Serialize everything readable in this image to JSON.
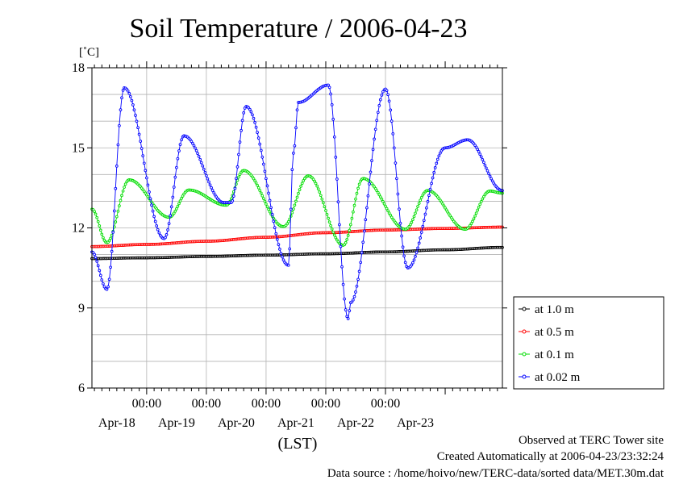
{
  "chart_data": {
    "type": "line",
    "title": "Soil Temperature / 2006-04-23",
    "ylabel": "[˚C]",
    "xlabel": "(LST)",
    "ylim": [
      6,
      18
    ],
    "yticks": [
      6,
      9,
      12,
      15,
      18
    ],
    "xlim": [
      "2006-04-17T02:00",
      "2006-04-23T23:00"
    ],
    "x_major_ticks": [
      "2006-04-18T00:00",
      "2006-04-19T00:00",
      "2006-04-20T00:00",
      "2006-04-21T00:00",
      "2006-04-22T00:00"
    ],
    "x_time_label": "00:00",
    "x_date_labels": [
      "Apr-18",
      "Apr-19",
      "Apr-20",
      "Apr-21",
      "Apr-22",
      "Apr-23"
    ],
    "grid": true,
    "legend_position": "right",
    "series": [
      {
        "name": "at 1.0 m",
        "color": "#000000",
        "x": [
          "2006-04-17T02:00",
          "2006-04-18T00:00",
          "2006-04-19T00:00",
          "2006-04-20T00:00",
          "2006-04-21T00:00",
          "2006-04-22T00:00",
          "2006-04-23T00:00",
          "2006-04-23T23:00"
        ],
        "y": [
          10.85,
          10.88,
          10.93,
          10.98,
          11.03,
          11.1,
          11.18,
          11.27
        ]
      },
      {
        "name": "at 0.5 m",
        "color": "#ff0000",
        "x": [
          "2006-04-17T02:00",
          "2006-04-18T00:00",
          "2006-04-19T00:00",
          "2006-04-20T00:00",
          "2006-04-21T00:00",
          "2006-04-22T00:00",
          "2006-04-23T00:00",
          "2006-04-23T23:00"
        ],
        "y": [
          11.3,
          11.38,
          11.5,
          11.65,
          11.82,
          11.92,
          11.98,
          12.03
        ]
      },
      {
        "name": "at 0.1 m",
        "color": "#00dd00",
        "x": [
          "2006-04-17T02:00",
          "2006-04-17T08:00",
          "2006-04-17T17:00",
          "2006-04-18T09:00",
          "2006-04-18T17:00",
          "2006-04-19T08:00",
          "2006-04-19T15:00",
          "2006-04-20T07:00",
          "2006-04-20T17:00",
          "2006-04-21T07:00",
          "2006-04-21T15:00",
          "2006-04-22T08:00",
          "2006-04-22T17:00",
          "2006-04-23T08:00",
          "2006-04-23T18:00",
          "2006-04-23T23:00"
        ],
        "y": [
          12.7,
          11.45,
          13.8,
          12.4,
          13.42,
          12.85,
          14.15,
          12.05,
          13.95,
          11.35,
          13.85,
          11.95,
          13.4,
          11.95,
          13.38,
          13.3
        ]
      },
      {
        "name": "at 0.02 m",
        "color": "#0000ff",
        "x": [
          "2006-04-17T02:00",
          "2006-04-17T08:00",
          "2006-04-17T15:00",
          "2006-04-18T07:00",
          "2006-04-18T15:00",
          "2006-04-19T07:00",
          "2006-04-19T10:00",
          "2006-04-19T16:00",
          "2006-04-20T09:00",
          "2006-04-20T11:00",
          "2006-04-20T13:00",
          "2006-04-21T01:00",
          "2006-04-21T09:00",
          "2006-04-21T10:00",
          "2006-04-22T00:00",
          "2006-04-22T09:00",
          "2006-04-23T00:00",
          "2006-04-23T09:00",
          "2006-04-23T23:00"
        ],
        "y": [
          11.1,
          9.7,
          17.25,
          11.6,
          15.45,
          12.95,
          12.95,
          16.55,
          10.6,
          14.8,
          16.7,
          17.35,
          8.6,
          9.2,
          17.2,
          10.5,
          15.0,
          15.3,
          13.4
        ]
      }
    ]
  },
  "footer": {
    "line1": "Observed at TERC Tower site",
    "line2": "Created Automatically at 2006-04-23/23:32:24",
    "line3": "Data source : /home/hoivo/new/TERC-data/sorted  data/MET.30m.dat"
  }
}
